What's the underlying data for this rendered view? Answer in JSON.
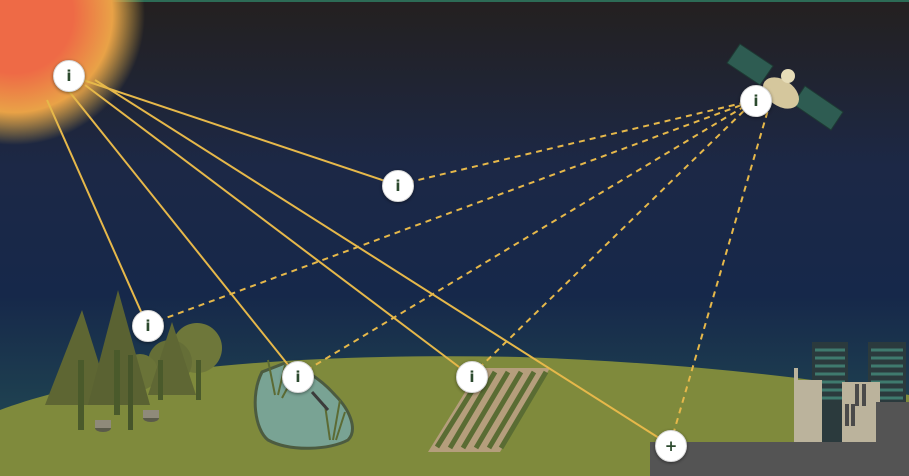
{
  "colors": {
    "sky_top": "#24201f",
    "sky_mid": "#1c2846",
    "sky_bottom": "#1e4050",
    "ground": "#7f8a3c",
    "sun": "#ee6a46",
    "ray": "#e6b84a",
    "water": "#79a394",
    "road": "#545454",
    "hotspot_icon": "#2c4a2e"
  },
  "hotspots": [
    {
      "glyph": "i",
      "icon": "info-icon",
      "target": "sun"
    },
    {
      "glyph": "i",
      "icon": "info-icon",
      "target": "atmosphere"
    },
    {
      "glyph": "i",
      "icon": "info-icon",
      "target": "satellite"
    },
    {
      "glyph": "i",
      "icon": "info-icon",
      "target": "forest"
    },
    {
      "glyph": "i",
      "icon": "info-icon",
      "target": "wetland"
    },
    {
      "glyph": "i",
      "icon": "info-icon",
      "target": "cropland"
    },
    {
      "glyph": "+",
      "icon": "plus-icon",
      "target": "urban"
    }
  ]
}
